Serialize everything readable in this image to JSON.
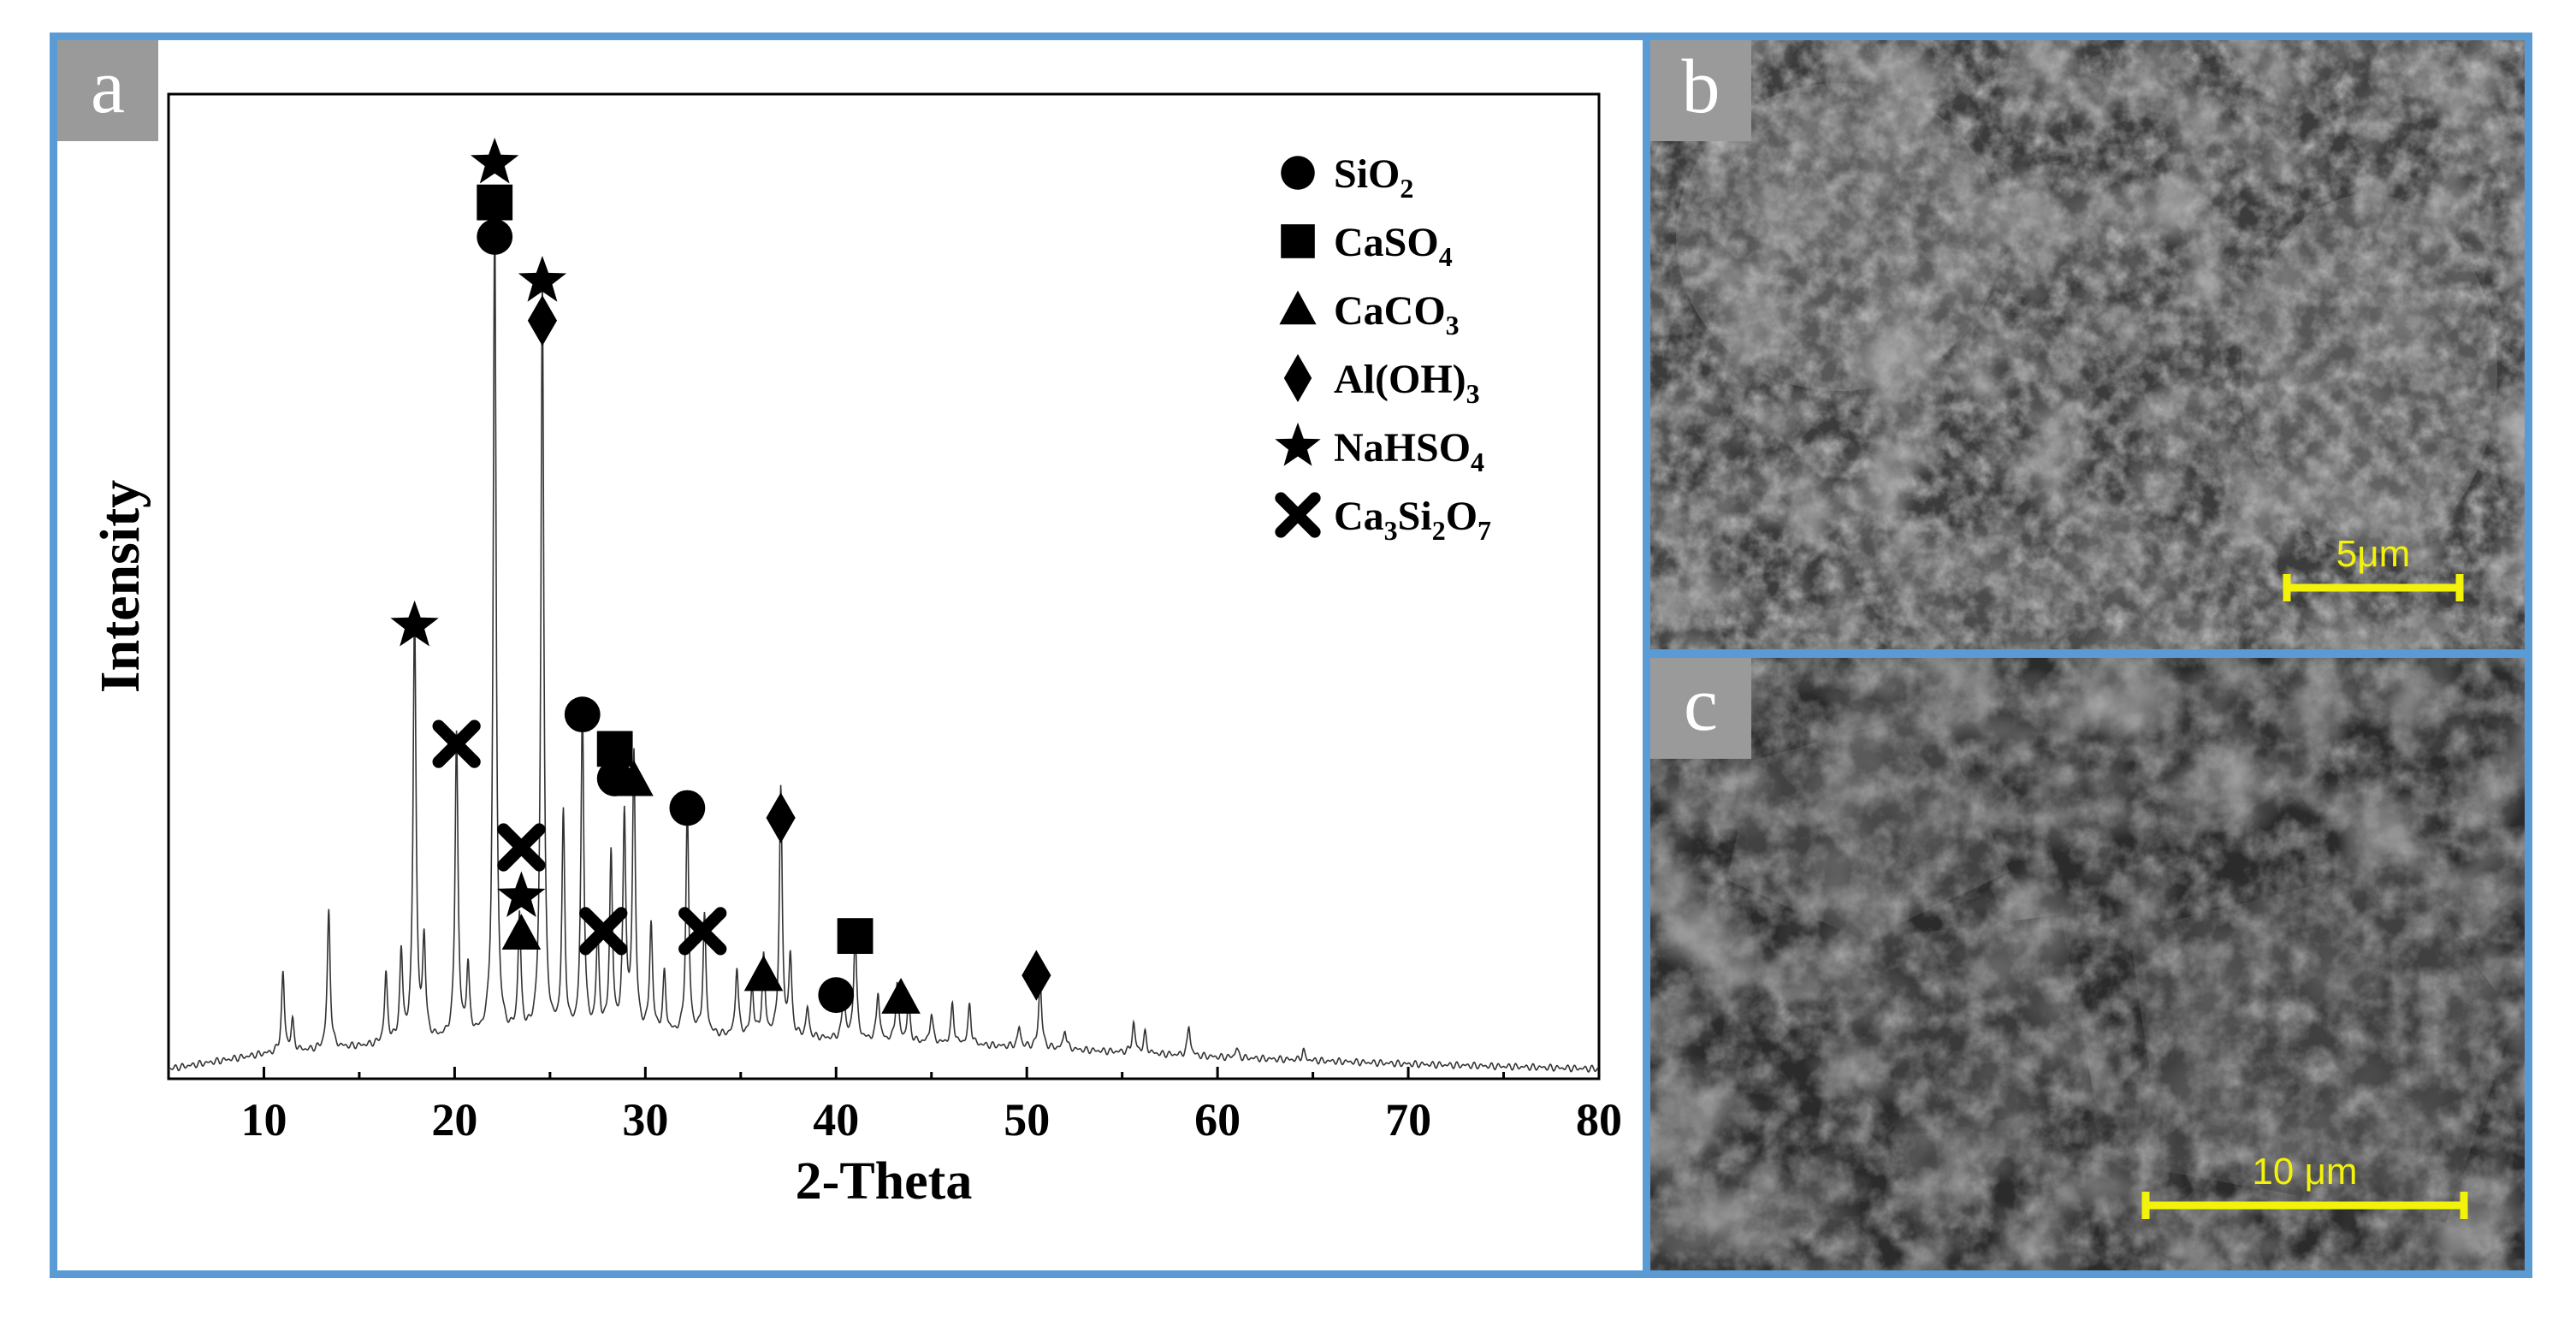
{
  "panels": {
    "a": "a",
    "b": "b",
    "c": "c"
  },
  "chart_data": {
    "type": "line",
    "xlabel": "2-Theta",
    "ylabel": "Intensity",
    "xlim": [
      5,
      80
    ],
    "ylim": [
      0,
      100
    ],
    "xticks": [
      10,
      20,
      30,
      40,
      50,
      60,
      70,
      80
    ],
    "grid": false,
    "legend_position": "top-right",
    "legend": [
      {
        "marker": "circle",
        "name": "SiO",
        "sub": "2",
        "rest": ""
      },
      {
        "marker": "square",
        "name": "CaSO",
        "sub": "4",
        "rest": ""
      },
      {
        "marker": "triangle",
        "name": "CaCO",
        "sub": "3",
        "rest": ""
      },
      {
        "marker": "diamond",
        "name": "Al(OH)",
        "sub": "3",
        "rest": ""
      },
      {
        "marker": "star",
        "name": "NaHSO",
        "sub": "4",
        "rest": ""
      },
      {
        "marker": "cross",
        "name": "Ca",
        "sub": "3",
        "rest": "Si",
        "sub2": "2",
        "rest2": "O",
        "sub3": "7"
      }
    ],
    "baseline": [
      [
        5,
        1
      ],
      [
        10,
        2.5
      ],
      [
        20,
        4
      ],
      [
        30,
        4.5
      ],
      [
        40,
        4
      ],
      [
        50,
        3.2
      ],
      [
        60,
        2.2
      ],
      [
        70,
        1.5
      ],
      [
        80,
        1
      ]
    ],
    "peaks": [
      {
        "x": 11.0,
        "h": 8
      },
      {
        "x": 11.5,
        "h": 3
      },
      {
        "x": 13.4,
        "h": 14
      },
      {
        "x": 16.4,
        "h": 7
      },
      {
        "x": 17.2,
        "h": 9
      },
      {
        "x": 17.9,
        "h": 44
      },
      {
        "x": 18.4,
        "h": 10
      },
      {
        "x": 20.1,
        "h": 31
      },
      {
        "x": 20.7,
        "h": 7
      },
      {
        "x": 22.1,
        "h": 84
      },
      {
        "x": 23.4,
        "h": 12
      },
      {
        "x": 24.6,
        "h": 77
      },
      {
        "x": 25.7,
        "h": 22
      },
      {
        "x": 26.7,
        "h": 33
      },
      {
        "x": 27.5,
        "h": 10
      },
      {
        "x": 28.2,
        "h": 18
      },
      {
        "x": 28.9,
        "h": 22
      },
      {
        "x": 29.4,
        "h": 28
      },
      {
        "x": 30.3,
        "h": 11
      },
      {
        "x": 31.0,
        "h": 6
      },
      {
        "x": 32.2,
        "h": 23
      },
      {
        "x": 33.1,
        "h": 12
      },
      {
        "x": 34.8,
        "h": 7
      },
      {
        "x": 35.6,
        "h": 5
      },
      {
        "x": 36.2,
        "h": 8
      },
      {
        "x": 37.1,
        "h": 25
      },
      {
        "x": 37.6,
        "h": 8
      },
      {
        "x": 38.5,
        "h": 3
      },
      {
        "x": 40.4,
        "h": 5
      },
      {
        "x": 41.0,
        "h": 11
      },
      {
        "x": 42.2,
        "h": 5
      },
      {
        "x": 43.2,
        "h": 6
      },
      {
        "x": 43.8,
        "h": 4
      },
      {
        "x": 45.0,
        "h": 3
      },
      {
        "x": 46.1,
        "h": 4
      },
      {
        "x": 47.0,
        "h": 4
      },
      {
        "x": 49.6,
        "h": 2
      },
      {
        "x": 50.7,
        "h": 7
      },
      {
        "x": 52.0,
        "h": 2
      },
      {
        "x": 55.6,
        "h": 3
      },
      {
        "x": 56.2,
        "h": 2
      },
      {
        "x": 58.5,
        "h": 3
      },
      {
        "x": 61.0,
        "h": 1
      },
      {
        "x": 64.5,
        "h": 1
      }
    ],
    "markers": [
      {
        "shape": "star",
        "x": 22.1,
        "y": 93
      },
      {
        "shape": "square",
        "x": 22.1,
        "y": 89
      },
      {
        "shape": "circle",
        "x": 22.1,
        "y": 85.5
      },
      {
        "shape": "star",
        "x": 24.6,
        "y": 81
      },
      {
        "shape": "diamond",
        "x": 24.6,
        "y": 77
      },
      {
        "shape": "star",
        "x": 17.9,
        "y": 46
      },
      {
        "shape": "cross",
        "x": 20.1,
        "y": 34
      },
      {
        "shape": "circle",
        "x": 26.7,
        "y": 37
      },
      {
        "shape": "square",
        "x": 28.4,
        "y": 33.5
      },
      {
        "shape": "circle",
        "x": 28.4,
        "y": 30.5
      },
      {
        "shape": "triangle",
        "x": 29.4,
        "y": 30.3
      },
      {
        "shape": "circle",
        "x": 32.2,
        "y": 27.5
      },
      {
        "shape": "diamond",
        "x": 37.1,
        "y": 26.5
      },
      {
        "shape": "cross",
        "x": 23.5,
        "y": 23.5
      },
      {
        "shape": "star",
        "x": 23.5,
        "y": 18.5
      },
      {
        "shape": "triangle",
        "x": 23.5,
        "y": 14.7
      },
      {
        "shape": "cross",
        "x": 27.8,
        "y": 15
      },
      {
        "shape": "cross",
        "x": 33.0,
        "y": 15
      },
      {
        "shape": "square",
        "x": 41.0,
        "y": 14.5
      },
      {
        "shape": "triangle",
        "x": 36.2,
        "y": 10.5
      },
      {
        "shape": "circle",
        "x": 40.0,
        "y": 8.5
      },
      {
        "shape": "triangle",
        "x": 43.4,
        "y": 8.2
      },
      {
        "shape": "diamond",
        "x": 50.5,
        "y": 10.5
      }
    ]
  },
  "sem": {
    "b": {
      "scale_label": "5μm"
    },
    "c": {
      "scale_label": "10 μm"
    }
  }
}
